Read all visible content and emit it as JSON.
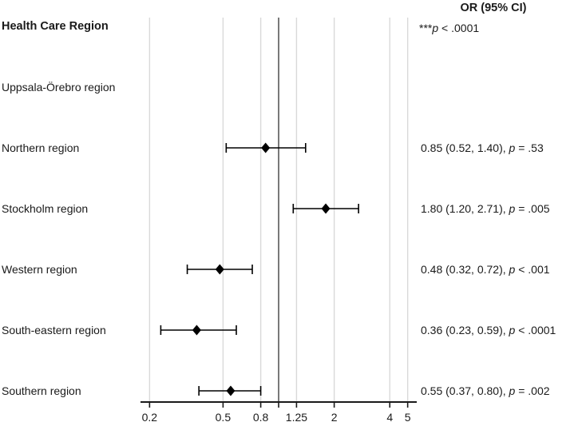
{
  "chart_data": {
    "type": "forest",
    "or_column_header": "OR (95% CI)",
    "group_label": "Health Care Region",
    "group_annotation": {
      "stars": "***",
      "p_symbol": "p",
      "rest": " < .0001"
    },
    "x_scale": "log",
    "x_domain": [
      0.2,
      5
    ],
    "reference_line": 1.0,
    "x_ticks": [
      {
        "value": 0.2,
        "label": "0.2"
      },
      {
        "value": 0.5,
        "label": "0.5"
      },
      {
        "value": 0.8,
        "label": "0.8"
      },
      {
        "value": 1.25,
        "label": "1.25"
      },
      {
        "value": 2,
        "label": "2"
      },
      {
        "value": 4,
        "label": "4"
      },
      {
        "value": 5,
        "label": "5"
      }
    ],
    "rows": [
      {
        "label": "Uppsala-Örebro region",
        "or": null,
        "ci_low": null,
        "ci_high": null,
        "est_text": "",
        "p_symbol": "",
        "p_text": ""
      },
      {
        "label": "Northern region",
        "or": 0.85,
        "ci_low": 0.52,
        "ci_high": 1.4,
        "est_text": "0.85 (0.52, 1.40), ",
        "p_symbol": "p",
        "p_text": " = .53"
      },
      {
        "label": "Stockholm region",
        "or": 1.8,
        "ci_low": 1.2,
        "ci_high": 2.71,
        "est_text": "1.80 (1.20, 2.71), ",
        "p_symbol": "p",
        "p_text": " = .005"
      },
      {
        "label": "Western region",
        "or": 0.48,
        "ci_low": 0.32,
        "ci_high": 0.72,
        "est_text": "0.48 (0.32, 0.72), ",
        "p_symbol": "p",
        "p_text": " < .001"
      },
      {
        "label": "South-eastern region",
        "or": 0.36,
        "ci_low": 0.23,
        "ci_high": 0.59,
        "est_text": "0.36 (0.23, 0.59), ",
        "p_symbol": "p",
        "p_text": " < .0001"
      },
      {
        "label": "Southern region",
        "or": 0.55,
        "ci_low": 0.37,
        "ci_high": 0.8,
        "est_text": "0.55 (0.37, 0.80), ",
        "p_symbol": "p",
        "p_text": " = .002"
      }
    ],
    "colors": {
      "text": "#1a1a1a",
      "gridline": "#d9d9d9",
      "reference_line": "#4d4d4d",
      "axis": "#1a1a1a",
      "marker": "#000000"
    }
  }
}
